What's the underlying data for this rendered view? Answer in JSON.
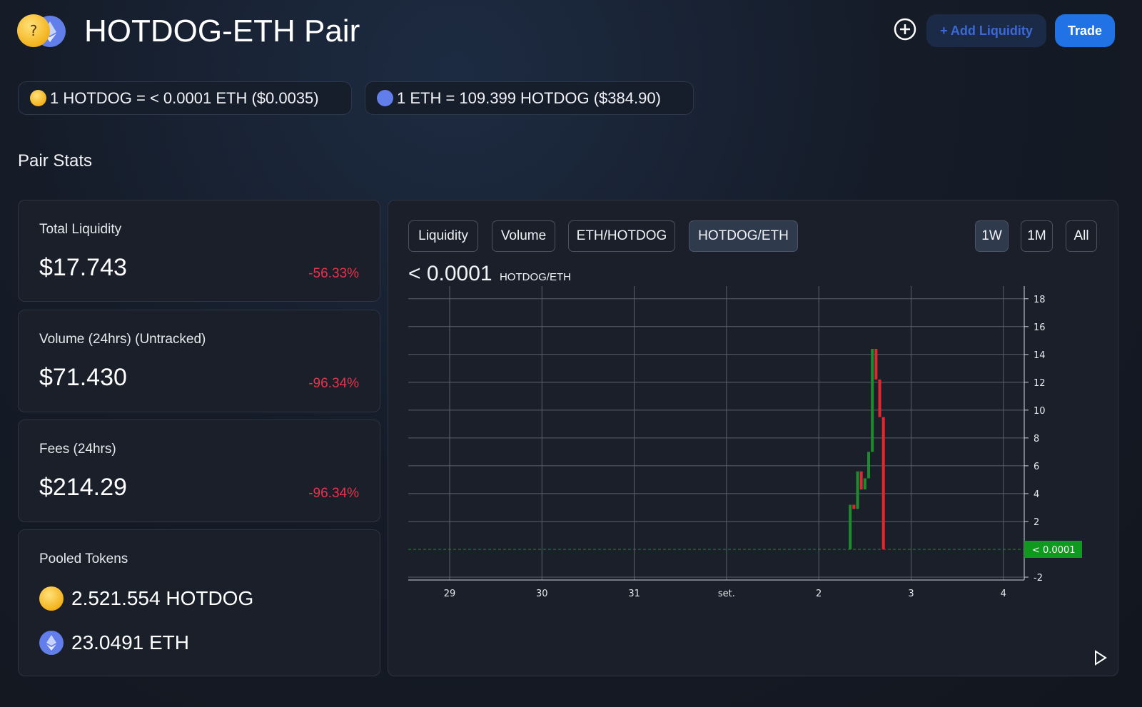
{
  "header": {
    "title": "HOTDOG-ETH Pair",
    "add_liquidity": "+ Add Liquidity",
    "trade": "Trade"
  },
  "rates": [
    {
      "text": "1 HOTDOG = < 0.0001 ETH ($0.0035)",
      "icon": "thinking-face-icon"
    },
    {
      "text": "1 ETH = 109.399 HOTDOG ($384.90)",
      "icon": "eth-icon"
    }
  ],
  "section_title": "Pair Stats",
  "stats": [
    {
      "label": "Total Liquidity",
      "value": "$17.743",
      "change": "-56.33%"
    },
    {
      "label": "Volume (24hrs) (Untracked)",
      "value": "$71.430",
      "change": "-96.34%"
    },
    {
      "label": "Fees (24hrs)",
      "value": "$214.29",
      "change": "-96.34%"
    }
  ],
  "pooled": {
    "label": "Pooled Tokens",
    "tokens": [
      {
        "text": "2.521.554 HOTDOG",
        "icon": "thinking-face-icon"
      },
      {
        "text": "23.0491 ETH",
        "icon": "eth-icon"
      }
    ]
  },
  "chart_tabs": [
    "Liquidity",
    "Volume",
    "ETH/HOTDOG",
    "HOTDOG/ETH"
  ],
  "active_tab": "HOTDOG/ETH",
  "range_tabs": [
    "1W",
    "1M",
    "All"
  ],
  "active_range": "1W",
  "chart_header": {
    "price": "< 0.0001",
    "unit": "HOTDOG/ETH"
  },
  "colors": {
    "up": "#1e8c2e",
    "down": "#e0282f",
    "accent": "#2172e5",
    "negative": "#e8334a",
    "price_tag": "#0f9a1f"
  },
  "chart_data": {
    "type": "candlestick",
    "x_tick_labels": [
      "29",
      "30",
      "31",
      "set.",
      "2",
      "3",
      "4"
    ],
    "y_ticks": [
      -2,
      2,
      4,
      6,
      8,
      10,
      12,
      14,
      16,
      18
    ],
    "ylim": [
      -2,
      18.5
    ],
    "current_price_label": "< 0.0001",
    "current_price_value": 0.0,
    "candles": [
      {
        "x": 2.34,
        "open": 0.0,
        "close": 3.2,
        "dir": "up"
      },
      {
        "x": 2.38,
        "open": 3.2,
        "close": 2.9,
        "dir": "down"
      },
      {
        "x": 2.42,
        "open": 2.9,
        "close": 5.6,
        "dir": "up"
      },
      {
        "x": 2.46,
        "open": 5.6,
        "close": 4.3,
        "dir": "down"
      },
      {
        "x": 2.5,
        "open": 4.3,
        "close": 5.1,
        "dir": "up"
      },
      {
        "x": 2.54,
        "open": 5.1,
        "close": 7.0,
        "dir": "up"
      },
      {
        "x": 2.58,
        "open": 7.0,
        "close": 14.4,
        "dir": "up"
      },
      {
        "x": 2.62,
        "open": 14.4,
        "close": 12.2,
        "dir": "down"
      },
      {
        "x": 2.66,
        "open": 12.2,
        "close": 9.5,
        "dir": "down"
      },
      {
        "x": 2.7,
        "open": 9.5,
        "close": 0.0,
        "dir": "down"
      }
    ],
    "grid": true
  }
}
